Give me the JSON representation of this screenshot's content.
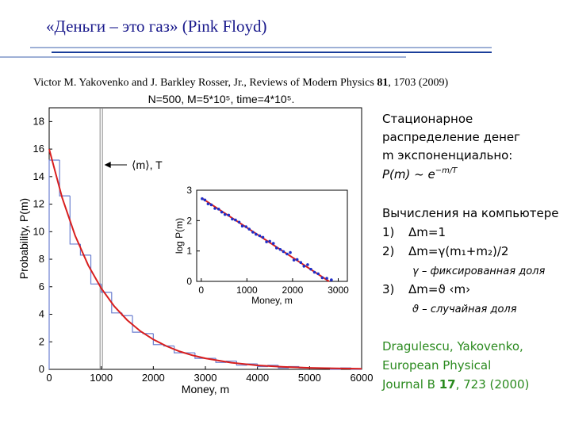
{
  "title": "«Деньги – это газ» (Pink Floyd)",
  "reference": [
    "Victor M. Yakovenko and J. Barkley Rosser, Jr., Reviews of Modern Physics ",
    "81",
    ", 1703 (2009)"
  ],
  "chart_data": [
    {
      "type": "histogram",
      "title": "N=500, M=5*10⁵, time=4*10⁵.",
      "x_label": "Money, m",
      "y_label": "Probability, P(m)",
      "bins": [
        0,
        200,
        400,
        600,
        800,
        1000,
        1200,
        1400,
        1600,
        1800,
        2000,
        2200,
        2400,
        2600,
        2800,
        3000,
        3200,
        3400,
        3600,
        3800,
        4000,
        4200,
        4400,
        4600,
        4800,
        5000,
        5200,
        5400,
        5600,
        5800,
        6000
      ],
      "values": [
        15.2,
        12.6,
        9.1,
        8.3,
        6.2,
        5.6,
        4.1,
        3.9,
        2.7,
        2.6,
        1.8,
        1.7,
        1.2,
        1.2,
        0.8,
        0.8,
        0.5,
        0.6,
        0.3,
        0.4,
        0.2,
        0.3,
        0.1,
        0.2,
        0.1,
        0.1,
        0.1,
        0,
        0.1,
        0
      ],
      "color": "#6b7fd0",
      "fit": {
        "color": "#d81e1e",
        "x": [
          0,
          250,
          500,
          750,
          1000,
          1250,
          1500,
          1750,
          2000,
          2250,
          2500,
          2750,
          3000,
          3500,
          4000,
          4500,
          5000,
          5500,
          6000
        ],
        "values": [
          16,
          12.46,
          9.7,
          7.56,
          5.89,
          4.58,
          3.57,
          2.78,
          2.17,
          1.69,
          1.31,
          1.02,
          0.8,
          0.48,
          0.29,
          0.18,
          0.11,
          0.07,
          0.04
        ]
      },
      "annotation": {
        "text": "⟨m⟩, T",
        "x": 1000
      },
      "xlim": [
        0,
        6000
      ],
      "ylim": [
        0,
        19
      ],
      "xticks": [
        0,
        1000,
        2000,
        3000,
        4000,
        5000,
        6000
      ],
      "yticks": [
        0,
        2,
        4,
        6,
        8,
        10,
        12,
        14,
        16,
        18
      ]
    },
    {
      "type": "scatter",
      "x_label": "Money, m",
      "y_label": "log P(m)",
      "x": [
        20,
        80,
        150,
        220,
        300,
        380,
        450,
        520,
        600,
        680,
        750,
        830,
        900,
        980,
        1050,
        1130,
        1200,
        1280,
        1350,
        1430,
        1500,
        1580,
        1650,
        1730,
        1800,
        1880,
        1950,
        2030,
        2100,
        2180,
        2250,
        2330,
        2400,
        2480,
        2560,
        2650,
        2750,
        2850
      ],
      "values": [
        2.72,
        2.68,
        2.55,
        2.52,
        2.4,
        2.38,
        2.28,
        2.2,
        2.18,
        2.05,
        2.02,
        1.95,
        1.82,
        1.8,
        1.72,
        1.62,
        1.55,
        1.5,
        1.45,
        1.3,
        1.32,
        1.25,
        1.1,
        1.05,
        0.98,
        0.9,
        0.95,
        0.7,
        0.72,
        0.62,
        0.5,
        0.55,
        0.4,
        0.3,
        0.25,
        0.12,
        0.1,
        0.05
      ],
      "color": "#1f2fc8",
      "fit": {
        "color": "#d81e1e",
        "x": [
          0,
          2800
        ],
        "values": [
          2.75,
          0
        ]
      },
      "xlim": [
        -100,
        3200
      ],
      "ylim": [
        0,
        3
      ],
      "xticks": [
        0,
        1000,
        2000,
        3000
      ],
      "yticks": [
        0,
        1,
        2,
        3
      ]
    }
  ],
  "side": {
    "heading": [
      "Стационарное",
      "распределение денег",
      "m экспоненциально:"
    ],
    "formula": [
      "P(m) ~ e",
      "−m/T"
    ],
    "computing": "Вычисления на компьютере",
    "items": [
      {
        "num": "1)",
        "text": "Δm=1"
      },
      {
        "num": "2)",
        "text": "Δm=γ(m₁+m₂)/2",
        "note": "γ – фиксированная доля"
      },
      {
        "num": "3)",
        "text": "Δm=ϑ ‹m›",
        "note": "ϑ – случайная доля"
      }
    ],
    "citation": [
      "Dragulescu, Yakovenko,",
      "European Physical",
      "Journal B ",
      "17",
      ", 723 (2000)"
    ]
  }
}
